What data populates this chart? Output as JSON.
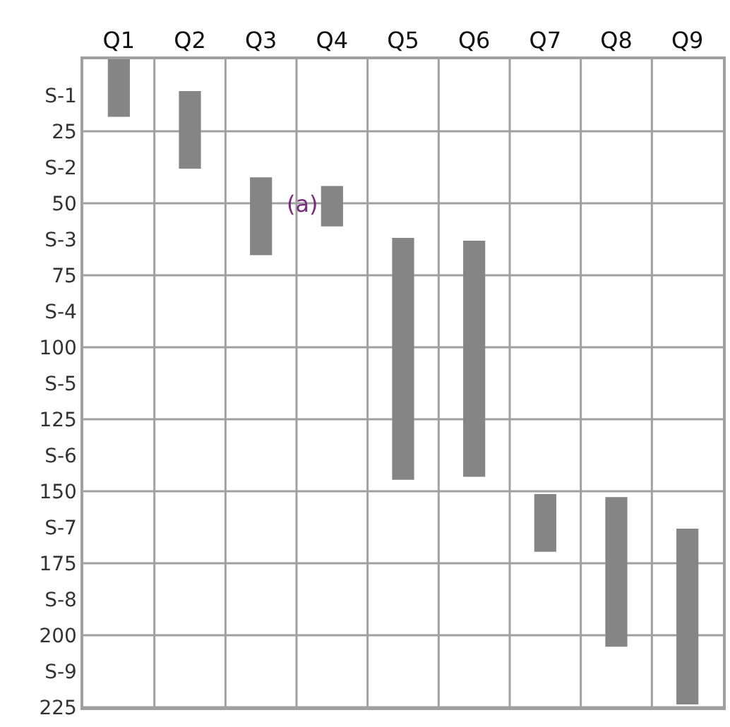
{
  "chart_data": {
    "type": "bar",
    "categories": [
      "Q1",
      "Q2",
      "Q3",
      "Q4",
      "Q5",
      "Q6",
      "Q7",
      "Q8",
      "Q9"
    ],
    "base": [
      0,
      11,
      41,
      44,
      62,
      63,
      151,
      152,
      163
    ],
    "values": [
      20,
      27,
      27,
      14,
      84,
      82,
      20,
      52,
      61
    ],
    "color": "#858585",
    "ylim": [
      225,
      0
    ],
    "yticks": [
      {
        "value": 12.5,
        "label": "S-1"
      },
      25,
      {
        "value": 37.5,
        "label": "S-2"
      },
      50,
      {
        "value": 62.5,
        "label": "S-3"
      },
      75,
      {
        "value": 87.5,
        "label": "S-4"
      },
      100,
      {
        "value": 112.5,
        "label": "S-5"
      },
      125,
      {
        "value": 137.5,
        "label": "S-6"
      },
      150,
      {
        "value": 162.5,
        "label": "S-7"
      },
      175,
      {
        "value": 187.5,
        "label": "S-8"
      },
      200,
      {
        "value": 212.5,
        "label": "S-9"
      },
      225
    ],
    "annotations": [
      "(a)"
    ],
    "grid": true
  }
}
